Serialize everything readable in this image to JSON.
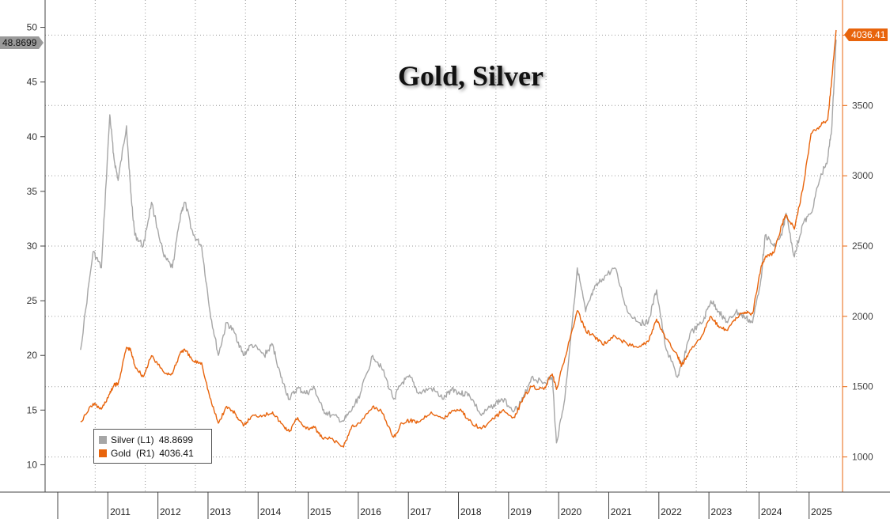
{
  "chart_data": {
    "type": "line",
    "title": "Gold, Silver",
    "x": [
      "2010-09",
      "2010-12",
      "2011-02",
      "2011-04",
      "2011-05",
      "2011-06",
      "2011-08",
      "2011-09",
      "2011-10",
      "2011-12",
      "2012-02",
      "2012-05",
      "2012-07",
      "2012-09",
      "2012-10",
      "2012-12",
      "2013-02",
      "2013-04",
      "2013-06",
      "2013-08",
      "2013-10",
      "2013-12",
      "2014-02",
      "2014-05",
      "2014-07",
      "2014-09",
      "2014-11",
      "2015-01",
      "2015-03",
      "2015-05",
      "2015-07",
      "2015-09",
      "2015-12",
      "2016-02",
      "2016-04",
      "2016-07",
      "2016-09",
      "2016-12",
      "2017-02",
      "2017-04",
      "2017-06",
      "2017-09",
      "2017-12",
      "2018-02",
      "2018-04",
      "2018-06",
      "2018-09",
      "2018-12",
      "2019-02",
      "2019-05",
      "2019-07",
      "2019-09",
      "2019-12",
      "2020-02",
      "2020-03",
      "2020-05",
      "2020-08",
      "2020-10",
      "2020-12",
      "2021-02",
      "2021-05",
      "2021-08",
      "2021-11",
      "2022-01",
      "2022-03",
      "2022-05",
      "2022-08",
      "2022-09",
      "2022-11",
      "2023-02",
      "2023-04",
      "2023-06",
      "2023-08",
      "2023-10",
      "2023-12",
      "2024-02",
      "2024-04",
      "2024-05",
      "2024-07",
      "2024-09",
      "2024-10",
      "2024-12",
      "2025-02",
      "2025-04",
      "2025-06",
      "2025-08",
      "2025-09",
      "2025-10"
    ],
    "series": [
      {
        "name": "Silver",
        "axis": "L1",
        "legend": "Silver (L1)",
        "last_label": "48.8699",
        "values": [
          20.5,
          29.5,
          28,
          42,
          38,
          36,
          41,
          35,
          31,
          30,
          34,
          29,
          28,
          33,
          34,
          31,
          30,
          24,
          20,
          23,
          22,
          20,
          21,
          20,
          21,
          18,
          16,
          17,
          16.5,
          17,
          15,
          14.5,
          14,
          15,
          16.5,
          20,
          19,
          16,
          17.5,
          18,
          16.5,
          17,
          16,
          17,
          16.5,
          16.5,
          14.5,
          15.5,
          16,
          15,
          16,
          18,
          17.5,
          18,
          12,
          16,
          28,
          24,
          26,
          27,
          28,
          24,
          23,
          23,
          26,
          21,
          18,
          19,
          22,
          23,
          25,
          24,
          23,
          24,
          23.5,
          23,
          27,
          31,
          30,
          31,
          33,
          29,
          32,
          33,
          36,
          38,
          41,
          48.8699
        ]
      },
      {
        "name": "Gold",
        "axis": "R1",
        "legend": "Gold  (R1)",
        "last_label": "4036.41",
        "values": [
          1250,
          1380,
          1340,
          1450,
          1510,
          1520,
          1780,
          1760,
          1650,
          1570,
          1720,
          1600,
          1590,
          1750,
          1760,
          1680,
          1670,
          1420,
          1240,
          1360,
          1310,
          1220,
          1290,
          1300,
          1320,
          1240,
          1180,
          1280,
          1200,
          1210,
          1130,
          1130,
          1070,
          1220,
          1240,
          1360,
          1330,
          1140,
          1240,
          1260,
          1250,
          1320,
          1270,
          1330,
          1340,
          1260,
          1200,
          1270,
          1330,
          1280,
          1420,
          1500,
          1480,
          1590,
          1480,
          1700,
          2040,
          1900,
          1860,
          1800,
          1860,
          1800,
          1790,
          1820,
          1980,
          1850,
          1720,
          1650,
          1760,
          1870,
          2000,
          1920,
          1900,
          1990,
          2030,
          2020,
          2350,
          2420,
          2450,
          2650,
          2720,
          2620,
          2900,
          3300,
          3350,
          3400,
          3700,
          4036.41
        ]
      }
    ],
    "y_left": {
      "ylim": [
        7.5,
        52.5
      ],
      "ticks": [
        10,
        15,
        20,
        25,
        30,
        35,
        40,
        45,
        50
      ],
      "label": ""
    },
    "y_right": {
      "ylim": [
        750,
        4250
      ],
      "ticks": [
        1000,
        1500,
        2000,
        2500,
        3000,
        3500,
        4000
      ],
      "label": ""
    },
    "x_ticks": [
      "2011",
      "2012",
      "2013",
      "2014",
      "2015",
      "2016",
      "2017",
      "2018",
      "2019",
      "2020",
      "2021",
      "2022",
      "2023",
      "2024",
      "2025"
    ],
    "grid": true,
    "legend_position": "bottom-left",
    "colors": {
      "silver": "#a6a6a6",
      "gold": "#e8640c",
      "grid": "#9a9a9a",
      "axis": "#444444"
    }
  }
}
